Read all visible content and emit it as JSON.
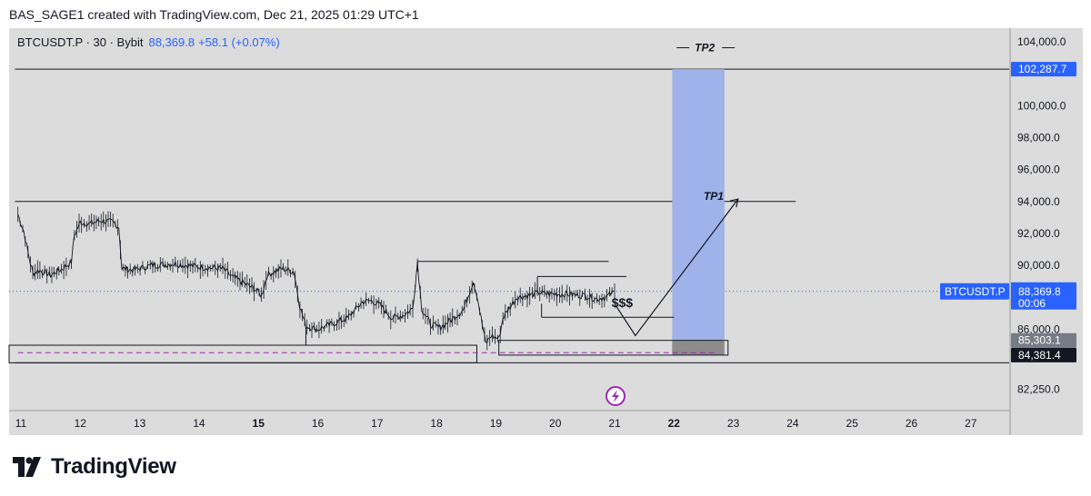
{
  "header": {
    "credit": "BAS_SAGE1 created with TradingView.com, Dec 21, 2025 01:29 UTC+1"
  },
  "legend": {
    "symbol": "BTCUSDT.P · 30 · Bybit",
    "price": "88,369.8",
    "change": "+58.1 (+0.07%)"
  },
  "footer": {
    "brand": "TradingView"
  },
  "chart_data": {
    "type": "candlestick",
    "symbol": "BTCUSDT.P",
    "interval": "30",
    "exchange": "Bybit",
    "last_price": 88369.8,
    "price_label": "88,369.8",
    "countdown": "00:06",
    "y_scale": {
      "min": 81300,
      "max": 104900
    },
    "y_ticks": [
      {
        "value": 104000,
        "label": "104,000.0"
      },
      {
        "value": 100000,
        "label": "100,000.0"
      },
      {
        "value": 98000,
        "label": "98,000.0"
      },
      {
        "value": 96000,
        "label": "96,000.0"
      },
      {
        "value": 94000,
        "label": "94,000.0"
      },
      {
        "value": 92000,
        "label": "92,000.0"
      },
      {
        "value": 90000,
        "label": "90,000.0"
      },
      {
        "value": 86000,
        "label": "86,000.0"
      },
      {
        "value": 82250,
        "label": "82,250.0"
      }
    ],
    "x_ticks": [
      {
        "day": 11,
        "label": "11",
        "bold": false
      },
      {
        "day": 12,
        "label": "12",
        "bold": false
      },
      {
        "day": 13,
        "label": "13",
        "bold": false
      },
      {
        "day": 14,
        "label": "14",
        "bold": false
      },
      {
        "day": 15,
        "label": "15",
        "bold": true
      },
      {
        "day": 16,
        "label": "16",
        "bold": false
      },
      {
        "day": 17,
        "label": "17",
        "bold": false
      },
      {
        "day": 18,
        "label": "18",
        "bold": false
      },
      {
        "day": 19,
        "label": "19",
        "bold": false
      },
      {
        "day": 20,
        "label": "20",
        "bold": false
      },
      {
        "day": 21,
        "label": "21",
        "bold": false
      },
      {
        "day": 22,
        "label": "22",
        "bold": true
      },
      {
        "day": 23,
        "label": "23",
        "bold": false
      },
      {
        "day": 24,
        "label": "24",
        "bold": false
      },
      {
        "day": 25,
        "label": "25",
        "bold": false
      },
      {
        "day": 26,
        "label": "26",
        "bold": false
      },
      {
        "day": 27,
        "label": "27",
        "bold": false
      }
    ],
    "price_path": [
      [
        10.95,
        93200
      ],
      [
        11.05,
        92100
      ],
      [
        11.12,
        90800
      ],
      [
        11.2,
        89500
      ],
      [
        11.3,
        89700
      ],
      [
        11.5,
        89400
      ],
      [
        11.7,
        89800
      ],
      [
        11.85,
        90200
      ],
      [
        11.9,
        91900
      ],
      [
        12.0,
        92700
      ],
      [
        12.15,
        92600
      ],
      [
        12.35,
        92800
      ],
      [
        12.55,
        92700
      ],
      [
        12.65,
        92400
      ],
      [
        12.7,
        89800
      ],
      [
        12.9,
        89700
      ],
      [
        13.2,
        90000
      ],
      [
        13.6,
        90100
      ],
      [
        14.0,
        89900
      ],
      [
        14.4,
        89800
      ],
      [
        14.55,
        89300
      ],
      [
        14.75,
        88900
      ],
      [
        14.95,
        88500
      ],
      [
        15.05,
        88100
      ],
      [
        15.15,
        89400
      ],
      [
        15.4,
        89800
      ],
      [
        15.6,
        89600
      ],
      [
        15.7,
        87400
      ],
      [
        15.8,
        86200
      ],
      [
        16.0,
        86000
      ],
      [
        16.3,
        86400
      ],
      [
        16.5,
        86700
      ],
      [
        16.75,
        87700
      ],
      [
        16.9,
        87800
      ],
      [
        17.05,
        87500
      ],
      [
        17.25,
        86700
      ],
      [
        17.45,
        86900
      ],
      [
        17.6,
        87300
      ],
      [
        17.68,
        90200
      ],
      [
        17.75,
        87300
      ],
      [
        17.9,
        86300
      ],
      [
        18.05,
        86100
      ],
      [
        18.25,
        86600
      ],
      [
        18.45,
        87200
      ],
      [
        18.62,
        89000
      ],
      [
        18.68,
        88200
      ],
      [
        18.75,
        86700
      ],
      [
        18.83,
        85100
      ],
      [
        18.92,
        85600
      ],
      [
        19.05,
        85400
      ],
      [
        19.12,
        86700
      ],
      [
        19.22,
        87300
      ],
      [
        19.35,
        88000
      ],
      [
        19.55,
        88100
      ],
      [
        19.72,
        88300
      ],
      [
        19.9,
        88200
      ],
      [
        20.2,
        88200
      ],
      [
        20.5,
        88100
      ],
      [
        20.7,
        87900
      ],
      [
        20.85,
        88000
      ],
      [
        21.0,
        88370
      ]
    ],
    "horizontal_lines": [
      {
        "name": "tp2-line",
        "price": 102287.7,
        "from_day": 10.9,
        "to_day": 28
      },
      {
        "name": "tp1-line",
        "price": 94000,
        "from_day": 10.9,
        "to_day": 24.05
      },
      {
        "name": "lower-line",
        "price": 83900,
        "from_day": 10.9,
        "to_day": 28
      }
    ],
    "labels": [
      {
        "name": "tp2-label",
        "text": "TP2",
        "day": 22.35,
        "price": 103400
      },
      {
        "name": "tp1-label",
        "text": "TP1",
        "day": 22.5,
        "price": 94100
      },
      {
        "name": "liquidity-label",
        "text": "$$$",
        "day": 20.95,
        "price": 87400
      }
    ],
    "position": {
      "entry": 85303.1,
      "stop": 84381.4,
      "target": 102287.7,
      "from_day": 21.97,
      "to_day": 22.85
    },
    "price_badges": [
      {
        "name": "tp2-price-badge",
        "text": "102,287.7",
        "price": 102287.7,
        "bg": "#2962ff",
        "fg": "#ffffff"
      },
      {
        "name": "last-price-badge",
        "text": "88,369.8",
        "price": 88369.8,
        "bg": "#2962ff",
        "fg": "#ffffff"
      },
      {
        "name": "entry-price-badge",
        "text": "85,303.1",
        "price": 85303.1,
        "bg": "#787b86",
        "fg": "#ffffff"
      },
      {
        "name": "stop-price-badge",
        "text": "84,381.4",
        "price": 84381.4,
        "bg": "#131722",
        "fg": "#ffffff"
      }
    ],
    "colors": {
      "background": "#dcdcdc",
      "candles": "#131722",
      "target_zone": "#9fb2e9",
      "stop_zone": "#8c8c8c",
      "last_price_line": "#2962ff",
      "dashed_level": "#9c27b0",
      "axis_text": "#131722"
    }
  }
}
